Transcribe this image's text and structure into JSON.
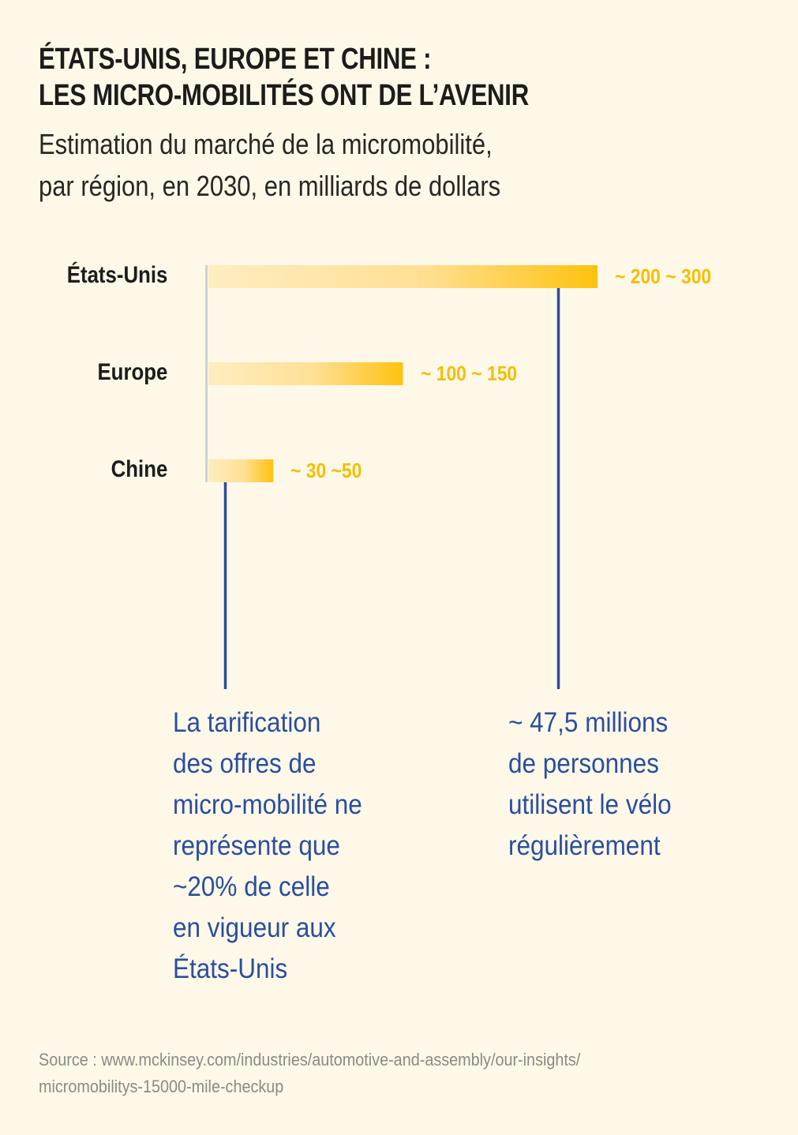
{
  "title": {
    "lines": [
      "ÉTATS-UNIS, EUROPE ET CHINE :",
      "LES MICRO-MOBILITÉS ONT DE L’AVENIR"
    ]
  },
  "subtitle": {
    "lines": [
      "Estimation du marché de la micromobilité,",
      "par région, en 2030, en milliards de dollars"
    ]
  },
  "colors": {
    "background": "#FEF8E8",
    "bar_start": "#FFEDC0",
    "bar_end": "#FFC20E",
    "value_label": "#F5BE00",
    "annotation": "#2A4E9E",
    "axis": "#CFCFD2"
  },
  "chart_data": {
    "type": "bar",
    "orientation": "horizontal",
    "title": "ÉTATS-UNIS, EUROPE ET CHINE : LES MICRO-MOBILITÉS ONT DE L’AVENIR",
    "subtitle": "Estimation du marché de la micromobilité, par région, en 2030, en milliards de dollars",
    "xlabel": "",
    "ylabel": "",
    "unit": "milliards de dollars",
    "categories": [
      "États-Unis",
      "Europe",
      "Chine"
    ],
    "ranges": [
      [
        200,
        300
      ],
      [
        100,
        150
      ],
      [
        30,
        50
      ]
    ],
    "values": [
      300,
      150,
      50
    ],
    "value_labels": [
      "~ 200 ~ 300",
      "~ 100 ~ 150",
      "~ 30 ~50"
    ],
    "xlim": [
      0,
      300
    ],
    "grid": false,
    "legend": "none",
    "annotations": [
      {
        "attached_to": "Chine",
        "lines": [
          "La tarification",
          "des offres de",
          "micro-mobilité ne",
          "représente que",
          "~20% de celle",
          "en vigueur aux",
          "États-Unis"
        ]
      },
      {
        "attached_to": "États-Unis",
        "lines": [
          "~ 47,5 millions",
          "de personnes",
          "utilisent le vélo",
          "régulièrement"
        ]
      }
    ]
  },
  "source": {
    "lines": [
      "Source : www.mckinsey.com/industries/automotive-and-assembly/our-insights/",
      "micromobilitys-15000-mile-checkup"
    ]
  }
}
